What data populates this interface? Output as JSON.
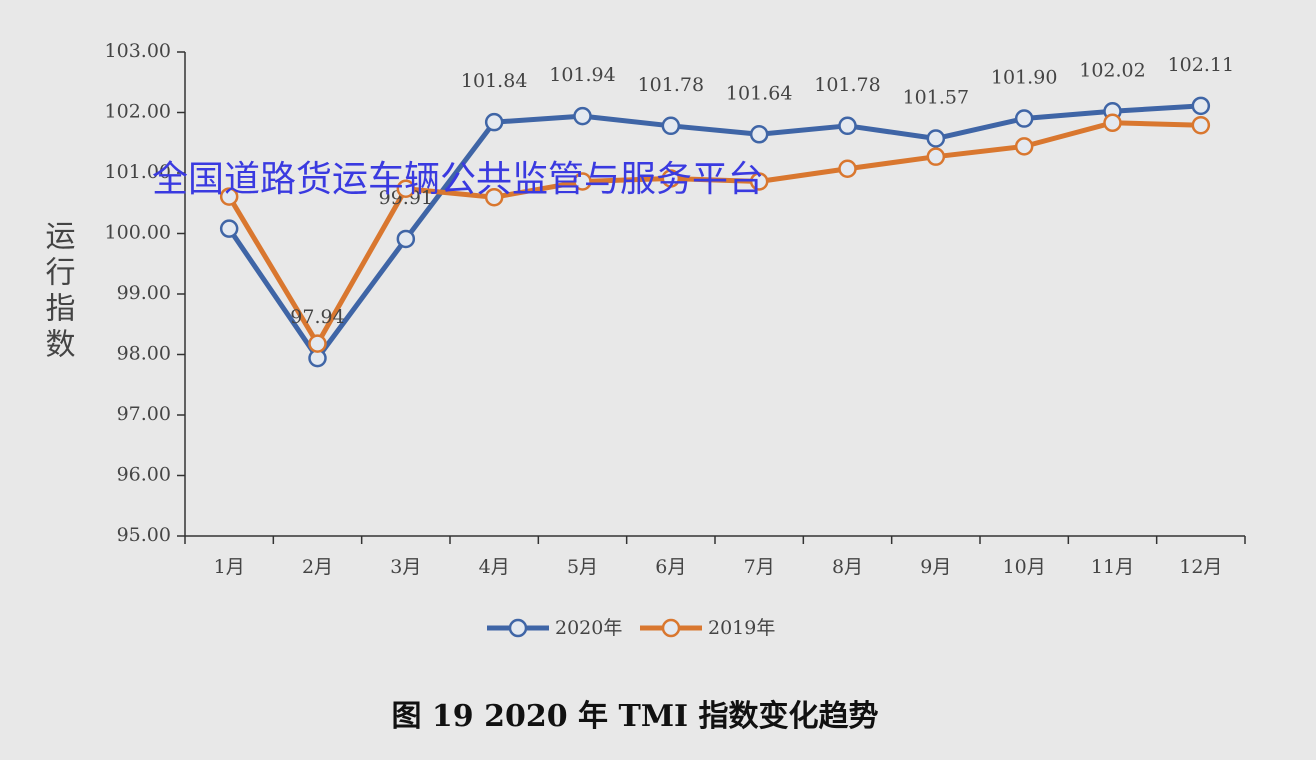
{
  "chart_data": {
    "type": "line",
    "y_label": "运行指数",
    "caption": "图 19 2020 年 TMI 指数变化趋势",
    "watermark": "全国道路货运车辆公共监管与服务平台",
    "categories": [
      "1月",
      "2月",
      "3月",
      "4月",
      "5月",
      "6月",
      "7月",
      "8月",
      "9月",
      "10月",
      "11月",
      "12月"
    ],
    "series": [
      {
        "name": "2020年",
        "color": "#3f65a6",
        "values": [
          100.08,
          97.94,
          99.91,
          101.84,
          101.94,
          101.78,
          101.64,
          101.78,
          101.57,
          101.9,
          102.02,
          102.11
        ],
        "value_labels": [
          null,
          "97.94",
          "99.91",
          "101.84",
          "101.94",
          "101.78",
          "101.64",
          "101.78",
          "101.57",
          "101.90",
          "102.02",
          "102.11"
        ]
      },
      {
        "name": "2019年",
        "color": "#d9772f",
        "values": [
          100.61,
          98.18,
          100.74,
          100.6,
          100.86,
          100.91,
          100.86,
          101.07,
          101.27,
          101.44,
          101.83,
          101.79
        ]
      }
    ],
    "ylim": [
      95,
      103
    ],
    "yticks": [
      {
        "value": 95,
        "label": "95.00"
      },
      {
        "value": 96,
        "label": "96.00"
      },
      {
        "value": 97,
        "label": "97.00"
      },
      {
        "value": 98,
        "label": "98.00"
      },
      {
        "value": 99,
        "label": "99.00"
      },
      {
        "value": 100,
        "label": "100.00"
      },
      {
        "value": 101,
        "label": "101.00"
      },
      {
        "value": 102,
        "label": "102.00"
      },
      {
        "value": 103,
        "label": "103.00"
      }
    ],
    "grid": false,
    "legend": "bottom"
  }
}
